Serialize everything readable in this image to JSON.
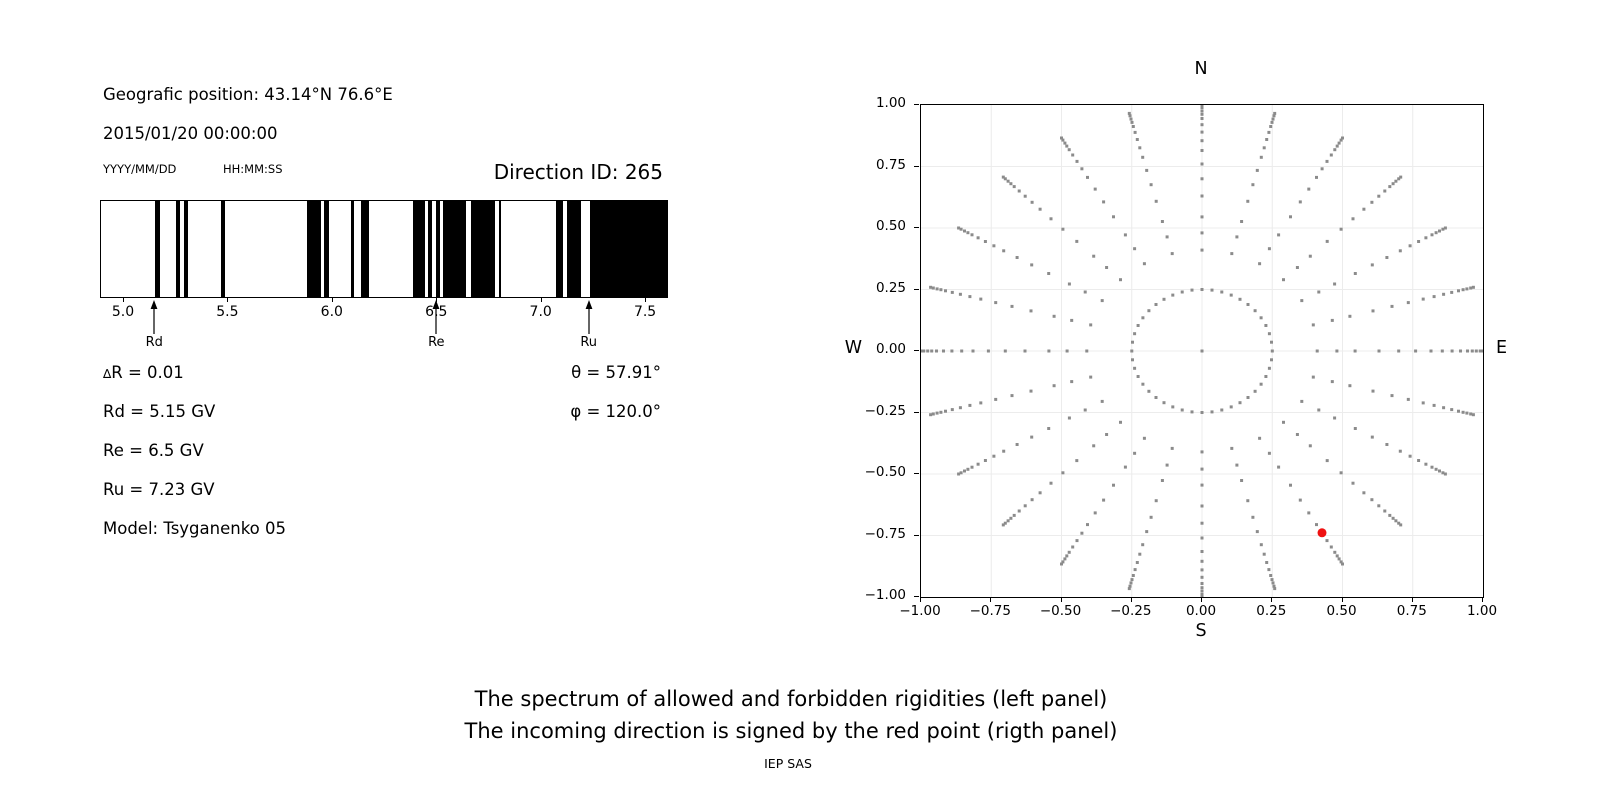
{
  "header": {
    "geo_position": "Geografic position: 43.14°N 76.6°E",
    "datetime": "2015/01/20 00:00:00",
    "date_format_label": "YYYY/MM/DD",
    "time_format_label": "HH:MM:SS",
    "direction_id": "Direction ID: 265"
  },
  "stats": {
    "delta_r_symbol": "∆",
    "delta_r_text": "R = 0.01",
    "rd": "Rd = 5.15 GV",
    "re": "Re = 6.5 GV",
    "ru": "Ru = 7.23 GV",
    "model": "Model: Tsyganenko 05",
    "theta": "θ = 57.91°",
    "phi": "φ = 120.0°"
  },
  "captions": {
    "line1": "The spectrum of allowed and forbidden rigidities (left panel)",
    "line2": "The incoming direction is signed by the red point (rigth panel)",
    "credit": "IEP SAS"
  },
  "chart_data": [
    {
      "id": "rigidity_spectrum",
      "type": "bar",
      "description": "Barcode spectrum of allowed (black) and forbidden (white) rigidities in GV",
      "xlim": [
        4.89,
        7.6
      ],
      "xticks": [
        5.0,
        5.5,
        6.0,
        6.5,
        7.0,
        7.5
      ],
      "xtick_labels": [
        "5.0",
        "5.5",
        "6.0",
        "6.5",
        "7.0",
        "7.5"
      ],
      "bar_color": "#000000",
      "bars_gv": [
        [
          5.15,
          5.171
        ],
        [
          5.251,
          5.27
        ],
        [
          5.289,
          5.308
        ],
        [
          5.466,
          5.485
        ],
        [
          5.878,
          5.945
        ],
        [
          5.959,
          5.983
        ],
        [
          6.089,
          6.103
        ],
        [
          6.137,
          6.175
        ],
        [
          6.384,
          6.44
        ],
        [
          6.456,
          6.475
        ],
        [
          6.493,
          6.512
        ],
        [
          6.528,
          6.64
        ],
        [
          6.66,
          6.775
        ],
        [
          6.794,
          6.807
        ],
        [
          7.07,
          7.102
        ],
        [
          7.123,
          7.19
        ],
        [
          7.23,
          7.6
        ]
      ],
      "arrows": [
        {
          "label": "Rd",
          "value": 5.15
        },
        {
          "label": "Re",
          "value": 6.5
        },
        {
          "label": "Ru",
          "value": 7.23
        }
      ]
    },
    {
      "id": "incoming_directions",
      "type": "scatter",
      "description": "Grid of incident directions; red point marks the incoming direction",
      "xlim": [
        -1,
        1
      ],
      "ylim": [
        -1,
        1
      ],
      "xticks": [
        -1,
        -0.75,
        -0.5,
        -0.25,
        0,
        0.25,
        0.5,
        0.75,
        1
      ],
      "xtick_labels": [
        "−1.00",
        "−0.75",
        "−0.50",
        "−0.25",
        "0.00",
        "0.25",
        "0.50",
        "0.75",
        "1.00"
      ],
      "yticks": [
        1,
        0.75,
        0.5,
        0.25,
        0,
        -0.25,
        -0.5,
        -0.75,
        -1
      ],
      "ytick_labels": [
        "1.00",
        "0.75",
        "0.50",
        "0.25",
        "0.00",
        "−0.25",
        "−0.50",
        "−0.75",
        "−1.00"
      ],
      "grid": true,
      "grid_values": [
        -0.75,
        -0.5,
        -0.25,
        0,
        0.25,
        0.5,
        0.75
      ],
      "grid_color": "#ececec",
      "compass_labels": {
        "top": "N",
        "bottom": "S",
        "left": "W",
        "right": "E"
      },
      "dot_color": "#8b8b8b",
      "center_dot": {
        "x": 0,
        "y": 0
      },
      "inner_ring": {
        "radius": 0.25,
        "count": 44
      },
      "rays": {
        "azimuth_start_deg": 0,
        "azimuth_step_deg": 15,
        "count": 24,
        "radii": [
          0.41,
          0.48,
          0.545,
          0.63,
          0.7,
          0.76,
          0.815,
          0.855,
          0.89,
          0.92,
          0.945,
          0.962,
          0.976,
          0.99,
          1.0
        ]
      },
      "red_point": {
        "x": 0.427,
        "y": -0.739,
        "color": "#ef1111"
      }
    }
  ]
}
